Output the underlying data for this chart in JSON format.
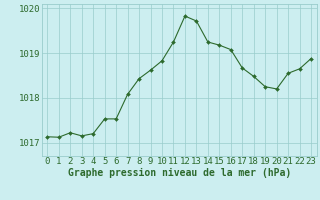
{
  "x": [
    0,
    1,
    2,
    3,
    4,
    5,
    6,
    7,
    8,
    9,
    10,
    11,
    12,
    13,
    14,
    15,
    16,
    17,
    18,
    19,
    20,
    21,
    22,
    23
  ],
  "y": [
    1017.13,
    1017.12,
    1017.22,
    1017.15,
    1017.2,
    1017.53,
    1017.53,
    1018.08,
    1018.43,
    1018.62,
    1018.83,
    1019.25,
    1019.83,
    1019.72,
    1019.25,
    1019.18,
    1019.08,
    1018.67,
    1018.48,
    1018.25,
    1018.2,
    1018.55,
    1018.65,
    1018.88
  ],
  "line_color": "#2d6a2d",
  "marker_color": "#2d6a2d",
  "bg_color": "#cceef0",
  "grid_color": "#99cccc",
  "ylabel_ticks": [
    1017,
    1018,
    1019,
    1020
  ],
  "ylim": [
    1016.7,
    1020.1
  ],
  "xlim": [
    -0.5,
    23.5
  ],
  "xlabel": "Graphe pression niveau de la mer (hPa)",
  "xlabel_fontsize": 7,
  "tick_fontsize": 6.5,
  "figwidth": 3.2,
  "figheight": 2.0,
  "dpi": 100
}
